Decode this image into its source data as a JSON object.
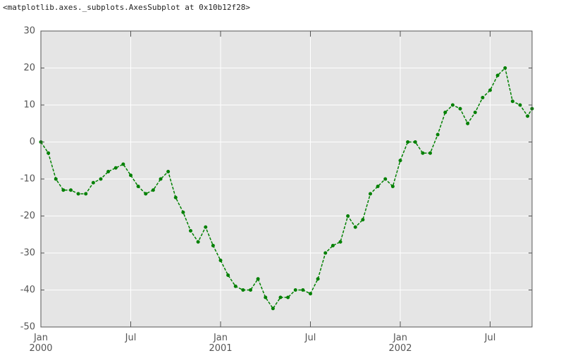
{
  "output_text": "<matplotlib.axes._subplots.AxesSubplot at 0x10b12f28>",
  "chart_data": {
    "type": "line",
    "color": "#008000",
    "grid": true,
    "x": [
      0,
      0.5,
      1,
      1.5,
      2,
      2.5,
      3,
      3.5,
      4,
      4.5,
      5,
      5.5,
      6,
      6.5,
      7,
      7.5,
      8,
      8.5,
      9,
      9.5,
      10,
      10.5,
      11,
      11.5,
      12,
      12.5,
      13,
      13.5,
      14,
      14.5,
      15,
      15.5,
      16,
      16.5,
      17,
      17.5,
      18,
      18.5,
      19,
      19.5,
      20,
      20.5,
      21,
      21.5,
      22,
      22.5,
      23,
      23.5,
      24,
      24.5,
      25,
      25.5,
      26,
      26.5,
      27,
      27.5,
      28,
      28.5,
      29,
      29.5,
      30,
      30.5,
      31,
      31.5,
      32,
      32.5,
      32.8
    ],
    "values": [
      0,
      -3,
      -10,
      -13,
      -13,
      -14,
      -14,
      -11,
      -10,
      -8,
      -7,
      -6,
      -9,
      -12,
      -14,
      -13,
      -10,
      -8,
      -15,
      -19,
      -24,
      -27,
      -23,
      -28,
      -32,
      -36,
      -39,
      -40,
      -40,
      -37,
      -42,
      -45,
      -42,
      -42,
      -40,
      -40,
      -41,
      -37,
      -30,
      -28,
      -27,
      -20,
      -23,
      -21,
      -14,
      -12,
      -10,
      -12,
      -5,
      0,
      0,
      -3,
      -3,
      2,
      8,
      10,
      9,
      5,
      8,
      12,
      14,
      18,
      20,
      11,
      10,
      7,
      9
    ],
    "xlim": [
      0,
      32.8
    ],
    "xticks": [
      {
        "value": 0,
        "label": "Jan\n2000"
      },
      {
        "value": 6,
        "label": "Jul"
      },
      {
        "value": 12,
        "label": "Jan\n2001"
      },
      {
        "value": 18,
        "label": "Jul"
      },
      {
        "value": 24,
        "label": "Jan\n2002"
      },
      {
        "value": 30,
        "label": "Jul"
      }
    ],
    "ylim": [
      -50,
      30
    ],
    "yticks": [
      -50,
      -40,
      -30,
      -20,
      -10,
      0,
      10,
      20,
      30
    ]
  }
}
